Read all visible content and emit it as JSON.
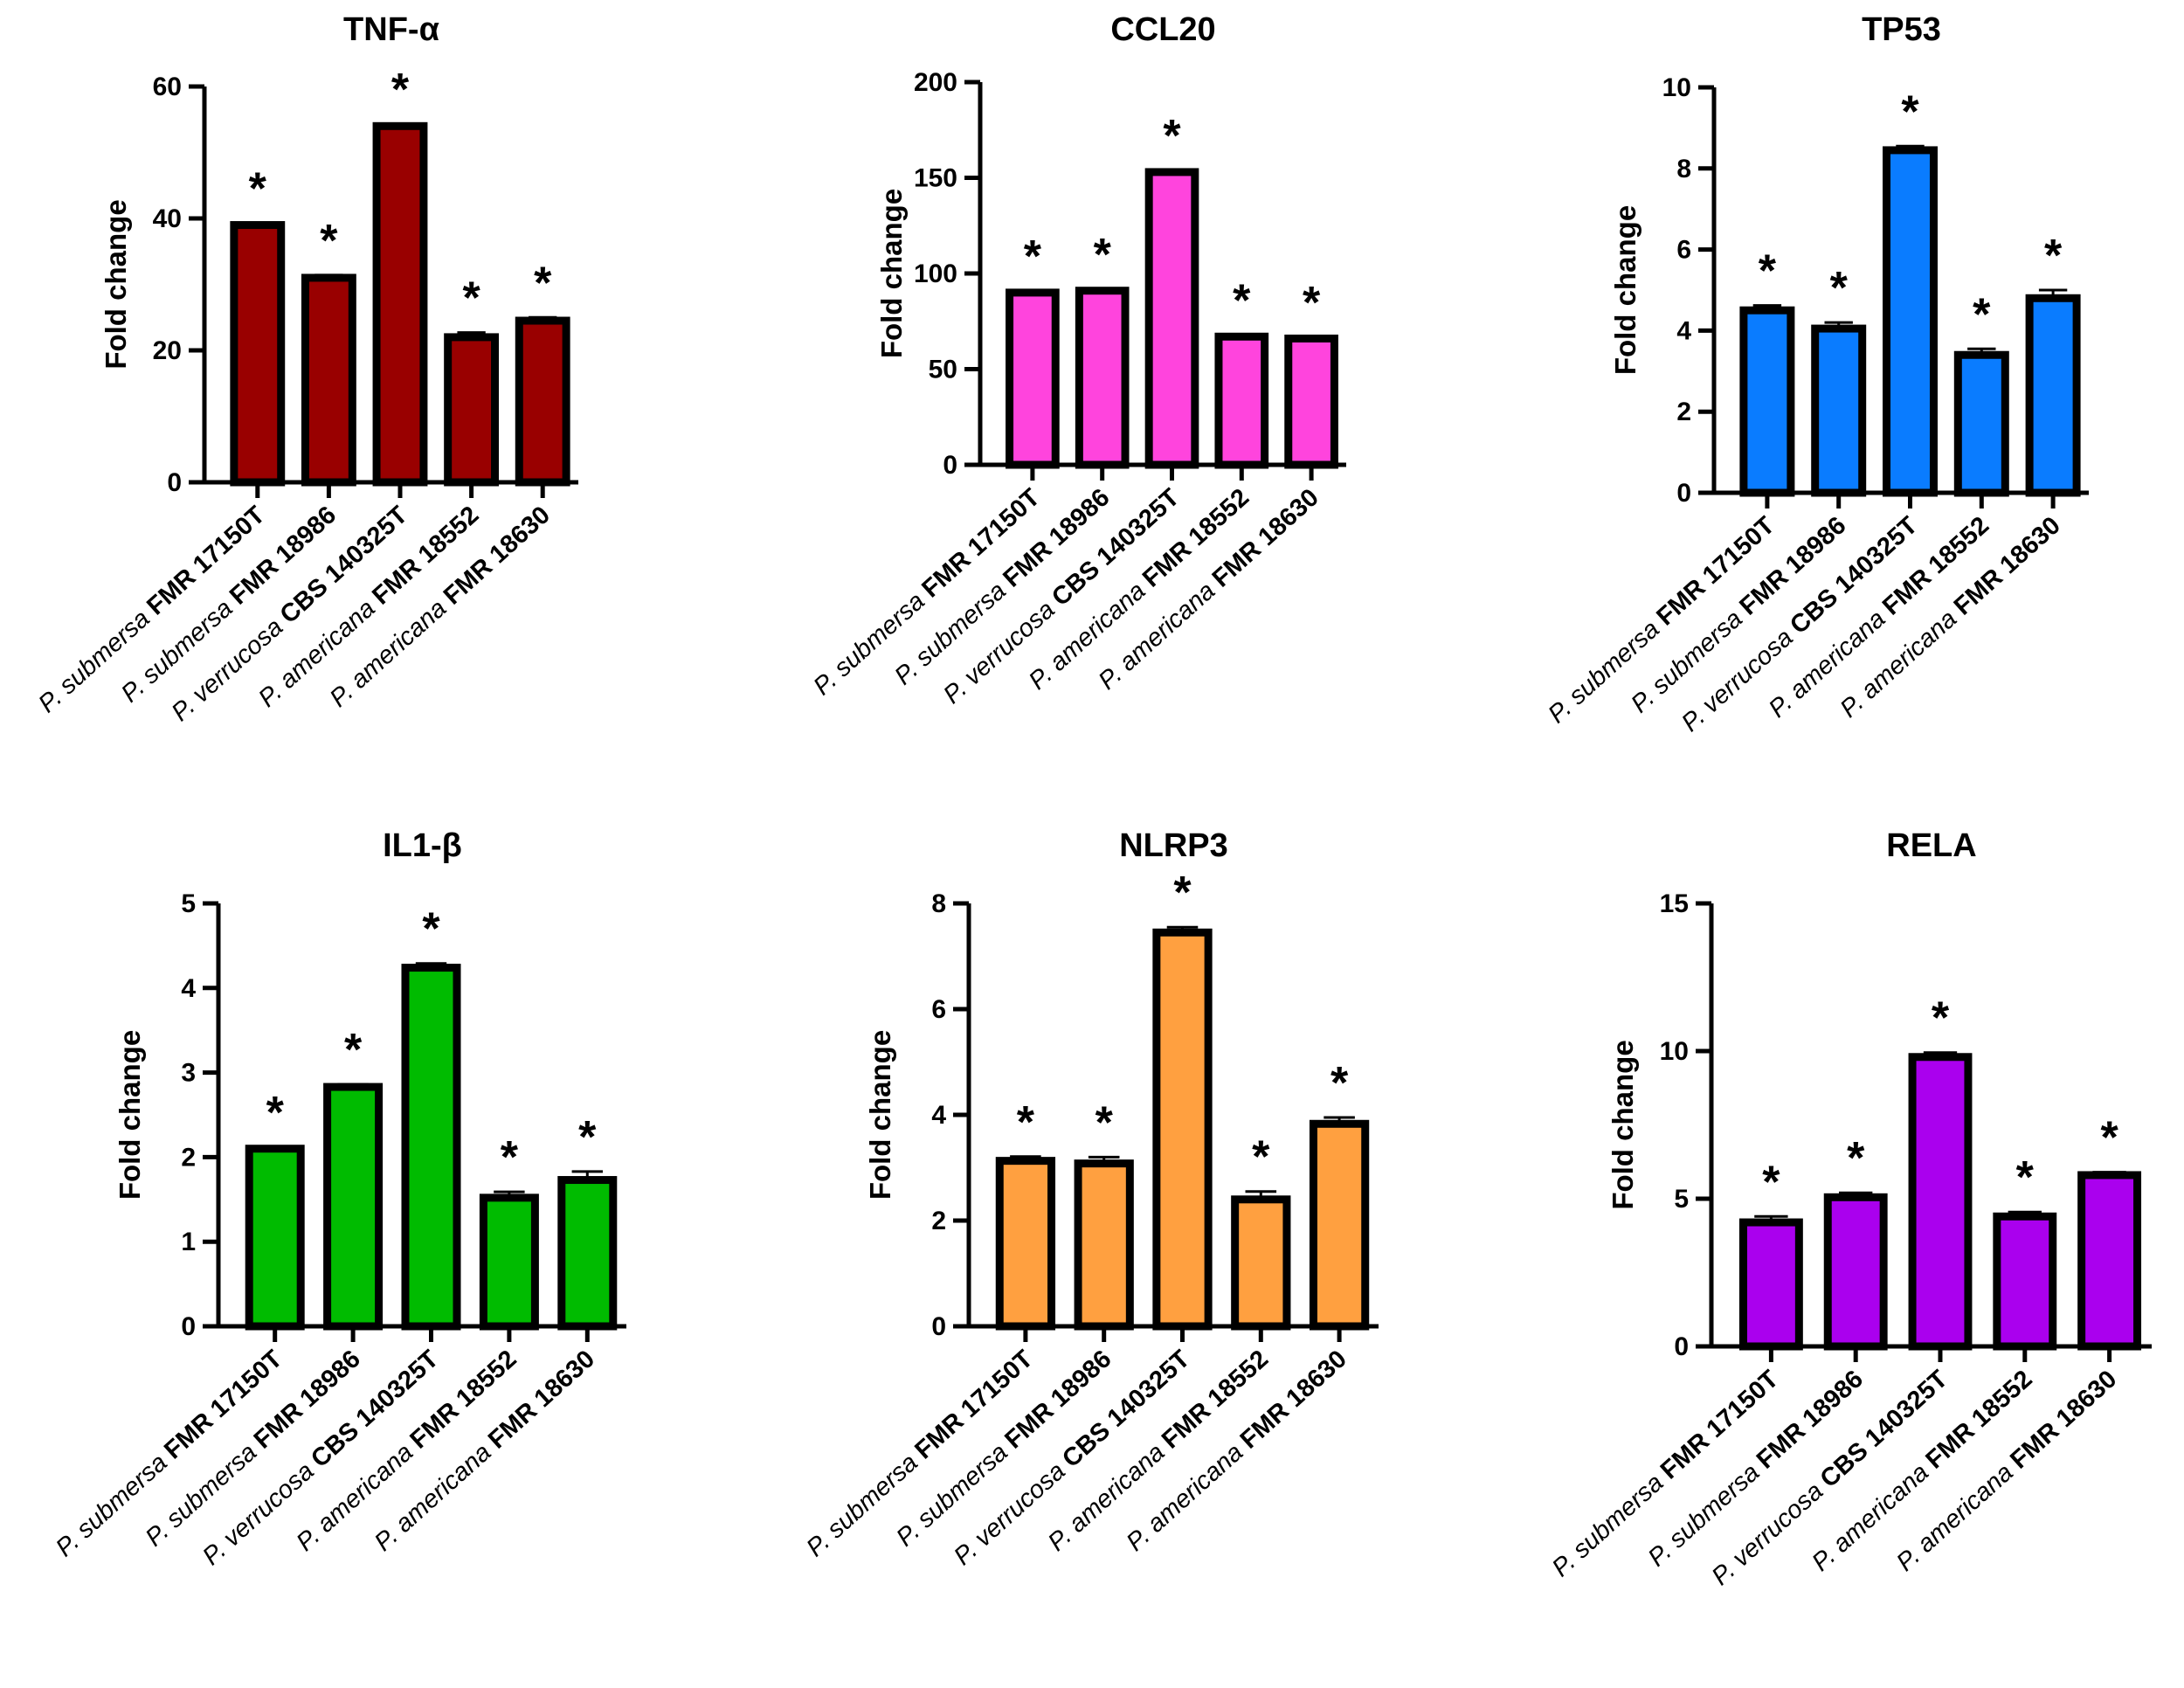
{
  "chart_data": [
    {
      "type": "bar",
      "title": "TNF-α",
      "ylabel": "Fold change",
      "ylim": [
        0,
        60
      ],
      "yticks": [
        0,
        20,
        40,
        60
      ],
      "categories": [
        [
          "P. submersa",
          "FMR 17150T"
        ],
        [
          "P. submersa",
          "FMR 18986"
        ],
        [
          "P. verrucosa",
          "CBS 140325T"
        ],
        [
          "P. americana",
          "FMR 18552"
        ],
        [
          "P. americana",
          "FMR 18630"
        ]
      ],
      "values": [
        39,
        31,
        54,
        22,
        24.5
      ],
      "errors": [
        0.3,
        0.4,
        0.3,
        0.7,
        0.5
      ],
      "annotations": [
        "*",
        "*",
        "*",
        "*",
        "*"
      ],
      "color": "#990000"
    },
    {
      "type": "bar",
      "title": "CCL20",
      "ylabel": "Fold change",
      "ylim": [
        0,
        200
      ],
      "yticks": [
        0,
        50,
        100,
        150,
        200
      ],
      "categories": [
        [
          "P. submersa",
          "FMR 17150T"
        ],
        [
          "P. submersa",
          "FMR 18986"
        ],
        [
          "P. verrucosa",
          "CBS 140325T"
        ],
        [
          "P. americana",
          "FMR 18552"
        ],
        [
          "P. americana",
          "FMR 18630"
        ]
      ],
      "values": [
        90,
        91,
        153,
        67,
        66
      ],
      "errors": [
        0.8,
        0.8,
        0.8,
        0.8,
        0.6
      ],
      "annotations": [
        "*",
        "*",
        "*",
        "*",
        "*"
      ],
      "color": "#ff44dd"
    },
    {
      "type": "bar",
      "title": "TP53",
      "ylabel": "Fold change",
      "ylim": [
        0,
        10
      ],
      "yticks": [
        0,
        2,
        4,
        6,
        8,
        10
      ],
      "categories": [
        [
          "P. submersa",
          "FMR 17150T"
        ],
        [
          "P. submersa",
          "FMR 18986"
        ],
        [
          "P. verrucosa",
          "CBS 140325T"
        ],
        [
          "P. americana",
          "FMR 18552"
        ],
        [
          "P. americana",
          "FMR 18630"
        ]
      ],
      "values": [
        4.5,
        4.05,
        8.45,
        3.4,
        4.8
      ],
      "errors": [
        0.12,
        0.15,
        0.1,
        0.15,
        0.2
      ],
      "annotations": [
        "*",
        "*",
        "*",
        "*",
        "*"
      ],
      "color": "#0a7cff"
    },
    {
      "type": "bar",
      "title": "IL1-β",
      "ylabel": "Fold change",
      "ylim": [
        0,
        5
      ],
      "yticks": [
        0,
        1,
        2,
        3,
        4,
        5
      ],
      "categories": [
        [
          "P. submersa",
          "FMR 17150T"
        ],
        [
          "P. submersa",
          "FMR 18986"
        ],
        [
          "P. verrucosa",
          "CBS 140325T"
        ],
        [
          "P. americana",
          "FMR 18552"
        ],
        [
          "P. americana",
          "FMR 18630"
        ]
      ],
      "values": [
        2.1,
        2.83,
        4.24,
        1.52,
        1.73
      ],
      "errors": [
        0.02,
        0.03,
        0.05,
        0.07,
        0.1
      ],
      "annotations": [
        "*",
        "*",
        "*",
        "*",
        "*"
      ],
      "color": "#00bb00"
    },
    {
      "type": "bar",
      "title": "NLRP3",
      "ylabel": "Fold change",
      "ylim": [
        0,
        8
      ],
      "yticks": [
        0,
        2,
        4,
        6,
        8
      ],
      "categories": [
        [
          "P. submersa",
          "FMR 17150T"
        ],
        [
          "P. submersa",
          "FMR 18986"
        ],
        [
          "P. verrucosa",
          "CBS 140325T"
        ],
        [
          "P. americana",
          "FMR 18552"
        ],
        [
          "P. americana",
          "FMR 18630"
        ]
      ],
      "values": [
        3.13,
        3.08,
        7.45,
        2.4,
        3.83
      ],
      "errors": [
        0.08,
        0.12,
        0.1,
        0.15,
        0.12
      ],
      "annotations": [
        "*",
        "*",
        "*",
        "*",
        "*"
      ],
      "color": "#ffa040"
    },
    {
      "type": "bar",
      "title": "RELA",
      "ylabel": "Fold change",
      "ylim": [
        0,
        15
      ],
      "yticks": [
        0,
        5,
        10,
        15
      ],
      "categories": [
        [
          "P. submersa",
          "FMR 17150T"
        ],
        [
          "P. submersa",
          "FMR 18986"
        ],
        [
          "P. verrucosa",
          "CBS 140325T"
        ],
        [
          "P. americana",
          "FMR 18552"
        ],
        [
          "P. americana",
          "FMR 18630"
        ]
      ],
      "values": [
        4.2,
        5.05,
        9.8,
        4.4,
        5.8
      ],
      "errors": [
        0.2,
        0.15,
        0.15,
        0.15,
        0.1
      ],
      "annotations": [
        "*",
        "*",
        "*",
        "*",
        "*"
      ],
      "color": "#aa00ee"
    }
  ]
}
